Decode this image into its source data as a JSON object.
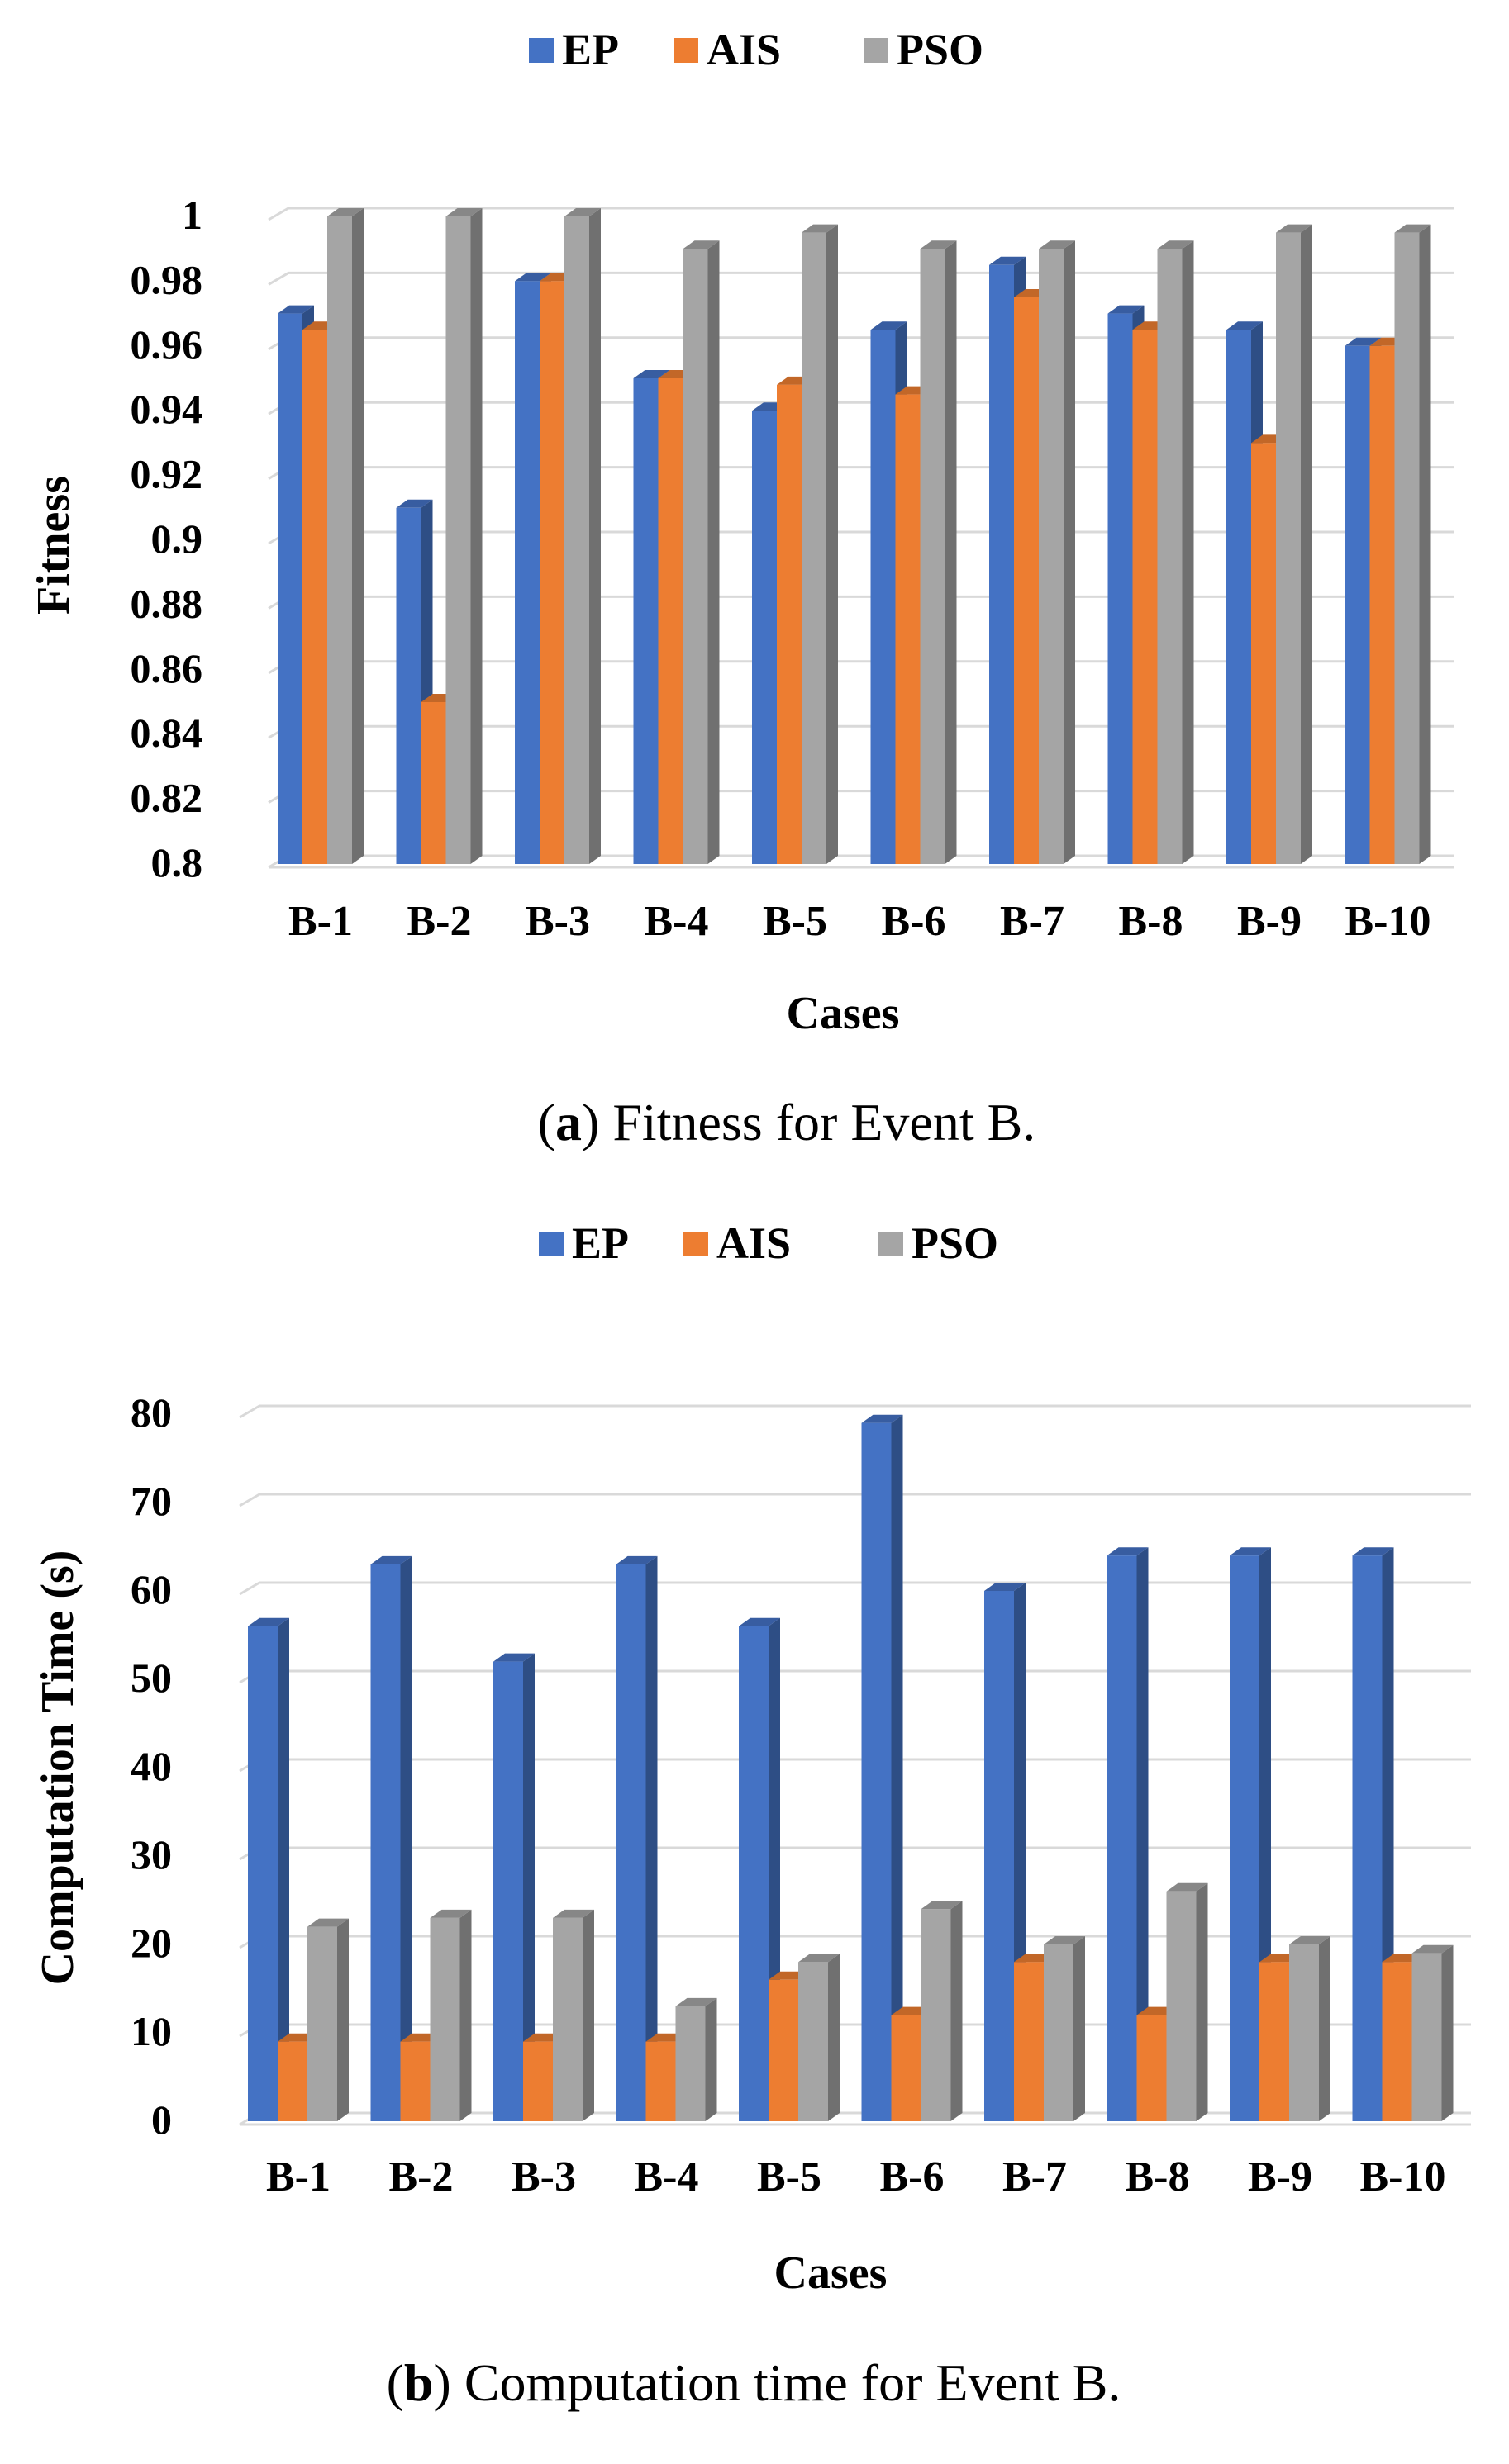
{
  "chart_data": [
    {
      "type": "bar",
      "title": "",
      "xlabel": "Cases",
      "ylabel": "Fitness",
      "ylim": [
        0.8,
        1.0
      ],
      "yticks": [
        0.8,
        0.82,
        0.84,
        0.86,
        0.88,
        0.9,
        0.92,
        0.94,
        0.96,
        0.98,
        1.0
      ],
      "ytick_labels": [
        "0.8",
        "0.82",
        "0.84",
        "0.86",
        "0.88",
        "0.9",
        "0.92",
        "0.94",
        "0.96",
        "0.98",
        "1"
      ],
      "grid": true,
      "legend_position": "top",
      "categories": [
        "B-1",
        "B-2",
        "B-3",
        "B-4",
        "B-5",
        "B-6",
        "B-7",
        "B-8",
        "B-9",
        "B-10"
      ],
      "series": [
        {
          "name": "EP",
          "color": "#4472C4",
          "values": [
            0.97,
            0.91,
            0.98,
            0.95,
            0.94,
            0.965,
            0.985,
            0.97,
            0.965,
            0.96
          ]
        },
        {
          "name": "AIS",
          "color": "#ED7D31",
          "values": [
            0.965,
            0.85,
            0.98,
            0.95,
            0.948,
            0.945,
            0.975,
            0.965,
            0.93,
            0.96
          ]
        },
        {
          "name": "PSO",
          "color": "#A5A5A5",
          "values": [
            1.0,
            1.0,
            1.0,
            0.99,
            0.995,
            0.99,
            0.99,
            0.99,
            0.995,
            0.995
          ]
        }
      ],
      "caption_letter": "a",
      "caption_text": " Fitness for Event B."
    },
    {
      "type": "bar",
      "title": "",
      "xlabel": "Cases",
      "ylabel": "Computation Time (s)",
      "ylim": [
        0,
        80
      ],
      "yticks": [
        0,
        10,
        20,
        30,
        40,
        50,
        60,
        70,
        80
      ],
      "ytick_labels": [
        "0",
        "10",
        "20",
        "30",
        "40",
        "50",
        "60",
        "70",
        "80"
      ],
      "grid": true,
      "legend_position": "top",
      "categories": [
        "B-1",
        "B-2",
        "B-3",
        "B-4",
        "B-5",
        "B-6",
        "B-7",
        "B-8",
        "B-9",
        "B-10"
      ],
      "series": [
        {
          "name": "EP",
          "color": "#4472C4",
          "values": [
            56,
            63,
            52,
            63,
            56,
            79,
            60,
            64,
            64,
            64
          ]
        },
        {
          "name": "AIS",
          "color": "#ED7D31",
          "values": [
            9,
            9,
            9,
            9,
            16,
            12,
            18,
            12,
            18,
            18
          ]
        },
        {
          "name": "PSO",
          "color": "#A5A5A5",
          "values": [
            22,
            23,
            23,
            13,
            18,
            24,
            20,
            26,
            20,
            19
          ]
        }
      ],
      "caption_letter": "b",
      "caption_text": " Computation time for Event B."
    }
  ]
}
